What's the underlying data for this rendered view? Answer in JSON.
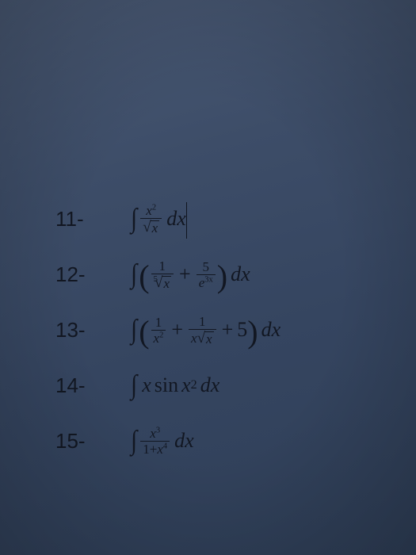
{
  "colors": {
    "background_gradient_from": "#4a5a75",
    "background_gradient_to": "#2f3f58",
    "text_color": "#121722"
  },
  "typography": {
    "number_font": "Arial",
    "number_fontsize_pt": 20,
    "math_font": "Cambria Math / Times",
    "math_fontsize_pt": 20
  },
  "rows": {
    "0": {
      "label": "11-",
      "_math": "∫ (x^2 / √x) dx"
    },
    "1": {
      "label": "12-",
      "_math": "∫ ( 1/⁵√x + 5/e^{3x} ) dx"
    },
    "2": {
      "label": "13-",
      "_math": "∫ ( 1/x² + 1/(x√x) + 5 ) dx"
    },
    "3": {
      "label": "14-",
      "_math": "∫ x sin x² dx"
    },
    "4": {
      "label": "15-",
      "_math": "∫ x³ / (1 + x⁴) dx"
    }
  },
  "glyphs": {
    "integral": "∫",
    "surd": "√",
    "plus": "+",
    "dx": "dx"
  },
  "sym": {
    "x": "x",
    "e": "e",
    "sin": "sin",
    "one": "1",
    "two": "2",
    "three": "3",
    "four": "4",
    "five": "5",
    "threex": "3x",
    "oneplusx4_a": "1+",
    "xsq": "x"
  }
}
